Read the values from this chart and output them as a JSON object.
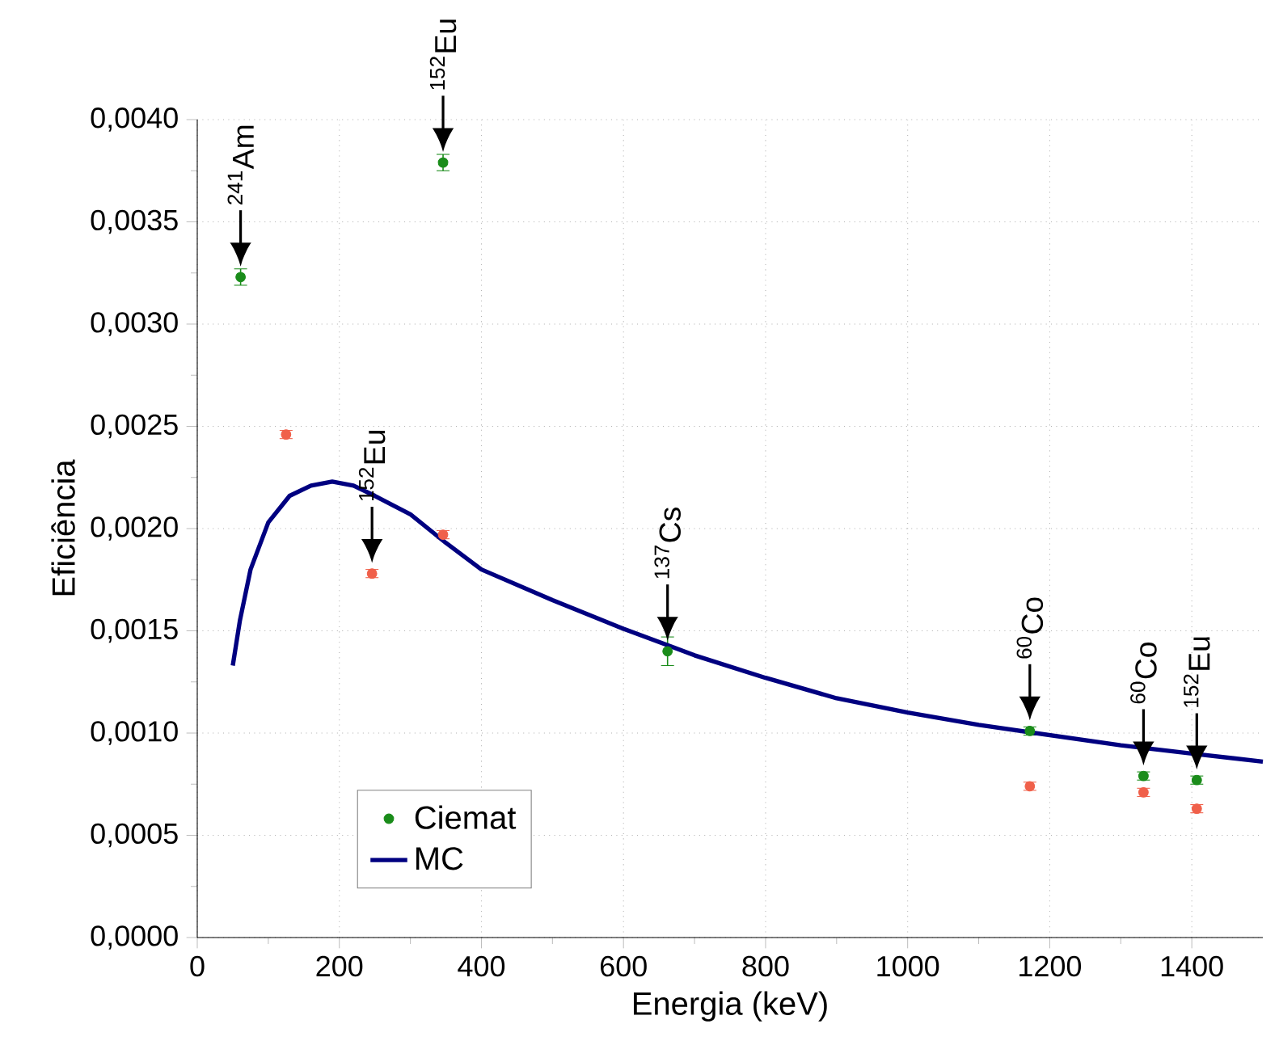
{
  "chart_data": {
    "type": "scatter",
    "xlabel": "Energia (keV)",
    "ylabel": "Eficiência",
    "xlim": [
      0,
      1500
    ],
    "xticks": [
      0,
      200,
      400,
      600,
      800,
      1000,
      1200,
      1400
    ],
    "ylim": [
      0,
      0.004
    ],
    "yticks": [
      {
        "value": 0,
        "label": "0,0000"
      },
      {
        "value": 0.0005,
        "label": "0,0005"
      },
      {
        "value": 0.001,
        "label": "0,0010"
      },
      {
        "value": 0.0015,
        "label": "0,0015"
      },
      {
        "value": 0.002,
        "label": "0,0020"
      },
      {
        "value": 0.0025,
        "label": "0,0025"
      },
      {
        "value": 0.003,
        "label": "0,0030"
      },
      {
        "value": 0.0035,
        "label": "0,0035"
      },
      {
        "value": 0.004,
        "label": "0,0040"
      }
    ],
    "grid": true,
    "legend": "bottom left",
    "series": [
      {
        "name": "Ciemat",
        "marker": "circle",
        "color": "#1a8c1a",
        "x": [
          61,
          346,
          662,
          1172,
          1332,
          1407
        ],
        "values": [
          0.00323,
          0.00379,
          0.0014,
          0.00101,
          0.00079,
          0.00077
        ],
        "errors": [
          4e-05,
          4e-05,
          7e-05,
          2e-05,
          2e-05,
          2e-05
        ]
      },
      {
        "marker": "circle",
        "color": "#f0604a",
        "x": [
          125,
          246,
          346,
          662,
          1172,
          1332,
          1407
        ],
        "values": [
          0.00246,
          0.00178,
          0.00197,
          null,
          0.00074,
          0.00071,
          0.00063
        ],
        "errors": [
          2e-05,
          2e-05,
          2e-05,
          null,
          2e-05,
          2e-05,
          2e-05
        ]
      },
      {
        "name": "MC",
        "type": "line",
        "marker": "none",
        "line_style": "solid",
        "color": "#000080",
        "x": [
          50,
          60,
          75,
          100,
          130,
          160,
          190,
          220,
          250,
          300,
          350,
          400,
          500,
          600,
          662,
          700,
          800,
          900,
          1000,
          1100,
          1200,
          1300,
          1400,
          1500
        ],
        "values": [
          0.00133,
          0.00155,
          0.0018,
          0.00203,
          0.00216,
          0.00221,
          0.00223,
          0.00221,
          0.00216,
          0.00207,
          0.00193,
          0.0018,
          0.00165,
          0.00151,
          0.00143,
          0.00138,
          0.00127,
          0.00117,
          0.0011,
          0.00104,
          0.00099,
          0.00094,
          0.0009,
          0.00086
        ]
      }
    ],
    "annotations": [
      {
        "text": "$^{241}$Am",
        "x": 61,
        "y": 0.00323
      },
      {
        "text": "$^{152}$Eu",
        "x": 346,
        "y": 0.00379
      },
      {
        "text": "$^{152}$Eu",
        "x": 246,
        "y": 0.00178
      },
      {
        "text": "$^{137}$Cs",
        "x": 662,
        "y": 0.0014
      },
      {
        "text": "$^{60}$Co",
        "x": 1172,
        "y": 0.00101
      },
      {
        "text": "$^{60}$Co",
        "x": 1332,
        "y": 0.00079
      },
      {
        "text": "$^{152}$Eu",
        "x": 1407,
        "y": 0.00077
      }
    ]
  }
}
